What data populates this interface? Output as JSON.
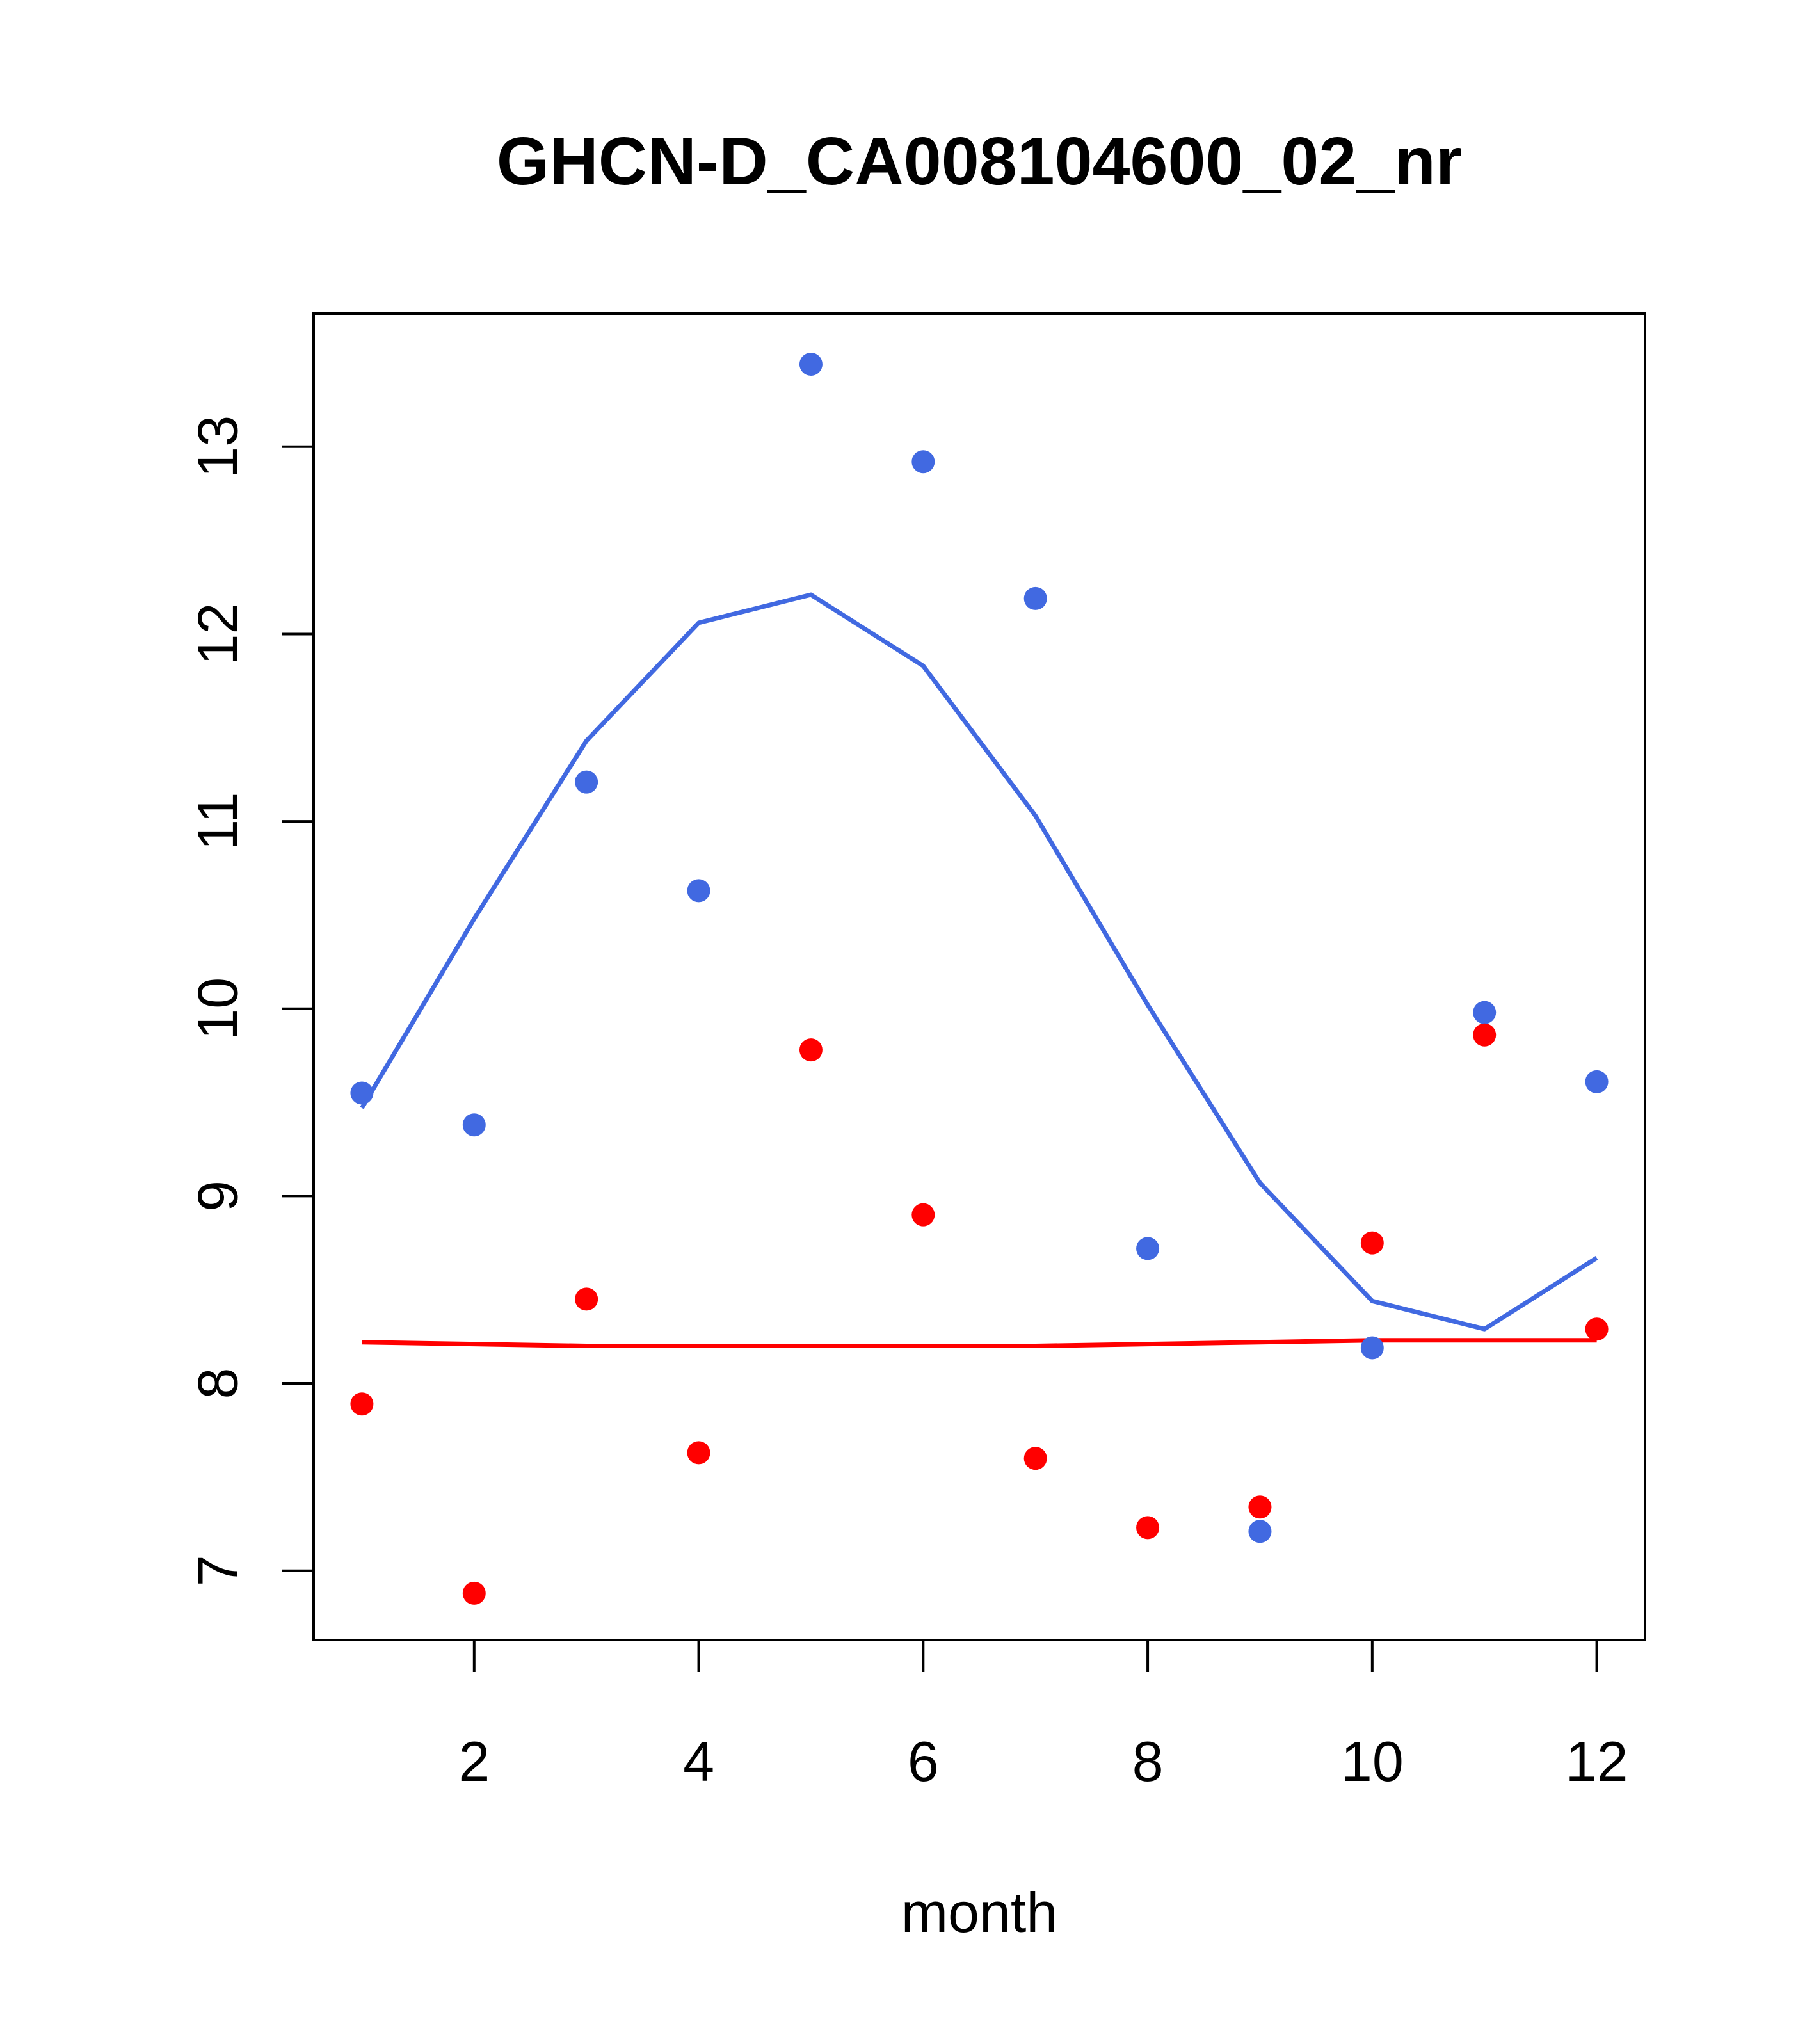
{
  "chart_data": {
    "type": "scatter",
    "title": "GHCN-D_CA008104600_02_nr",
    "xlabel": "month",
    "ylabel": "",
    "xlim": [
      0.57,
      12.43
    ],
    "ylim": [
      6.63,
      13.71
    ],
    "x_ticks": [
      2,
      4,
      6,
      8,
      10,
      12
    ],
    "y_ticks": [
      7,
      8,
      9,
      10,
      11,
      12,
      13
    ],
    "grid": false,
    "legend": "none",
    "series": [
      {
        "kind": "points",
        "color": "#4169E1",
        "x": [
          1,
          2,
          3,
          4,
          5,
          6,
          7,
          8,
          9,
          10,
          11,
          12
        ],
        "y": [
          9.55,
          9.38,
          11.21,
          10.63,
          13.44,
          12.92,
          12.19,
          8.72,
          7.21,
          8.19,
          9.98,
          9.61
        ]
      },
      {
        "kind": "points",
        "color": "#FF0000",
        "x": [
          1,
          2,
          3,
          4,
          5,
          6,
          7,
          8,
          9,
          10,
          11,
          12
        ],
        "y": [
          7.89,
          6.88,
          8.45,
          7.63,
          9.78,
          8.9,
          7.6,
          7.23,
          7.34,
          8.75,
          9.86,
          8.29
        ]
      },
      {
        "kind": "line",
        "color": "#4169E1",
        "x": [
          1,
          2,
          3,
          4,
          5,
          6,
          7,
          8,
          9,
          10,
          11,
          12
        ],
        "y": [
          9.47,
          10.48,
          11.43,
          12.06,
          12.21,
          11.83,
          11.03,
          10.02,
          9.07,
          8.44,
          8.29,
          8.67
        ]
      },
      {
        "kind": "line",
        "color": "#FF0000",
        "x": [
          1,
          2,
          3,
          4,
          5,
          6,
          7,
          8,
          9,
          10,
          11,
          12
        ],
        "y": [
          8.22,
          8.21,
          8.2,
          8.2,
          8.2,
          8.2,
          8.2,
          8.21,
          8.22,
          8.23,
          8.23,
          8.23
        ]
      }
    ]
  }
}
